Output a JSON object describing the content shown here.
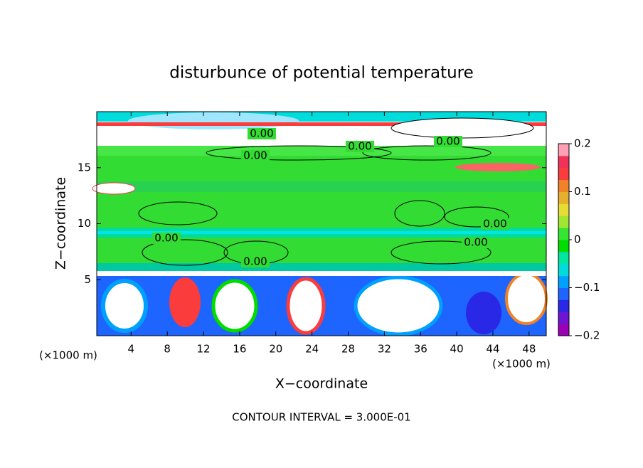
{
  "chart_data": {
    "type": "contour",
    "title": "disturbunce of potential temperature",
    "x_label": "X−coordinate",
    "y_label": "Z−coordinate",
    "x_unit": "(×1000 m)",
    "x_unit_right": "(×1000 m)",
    "footer": "CONTOUR INTERVAL = 3.000E-01",
    "xlim": [
      0.2,
      49.9
    ],
    "xticks": [
      4,
      8,
      12,
      16,
      20,
      24,
      28,
      32,
      36,
      40,
      44,
      48
    ],
    "ylim": [
      0,
      20
    ],
    "yticks": [
      5,
      10,
      15
    ],
    "contour_labels": [
      "0.00",
      "0.00",
      "0.00",
      "0.00",
      "0.00",
      "0.00",
      "0.00",
      "0.00"
    ],
    "colorbar": {
      "lim": [
        -0.2,
        0.2
      ],
      "ticks": [
        {
          "value": -0.2,
          "label": "−0.2"
        },
        {
          "value": -0.1,
          "label": "−0.1"
        },
        0,
        0.1,
        0.2
      ],
      "colors": [
        "#9b00b4",
        "#6e14d2",
        "#2828e6",
        "#1e64ff",
        "#00a0ff",
        "#00dcdc",
        "#00e6a0",
        "#00dc00",
        "#32e632",
        "#a0e632",
        "#e6dc32",
        "#e6af2d",
        "#f08228",
        "#fa3c3c",
        "#f0325a",
        "#ffa0b4"
      ]
    }
  }
}
